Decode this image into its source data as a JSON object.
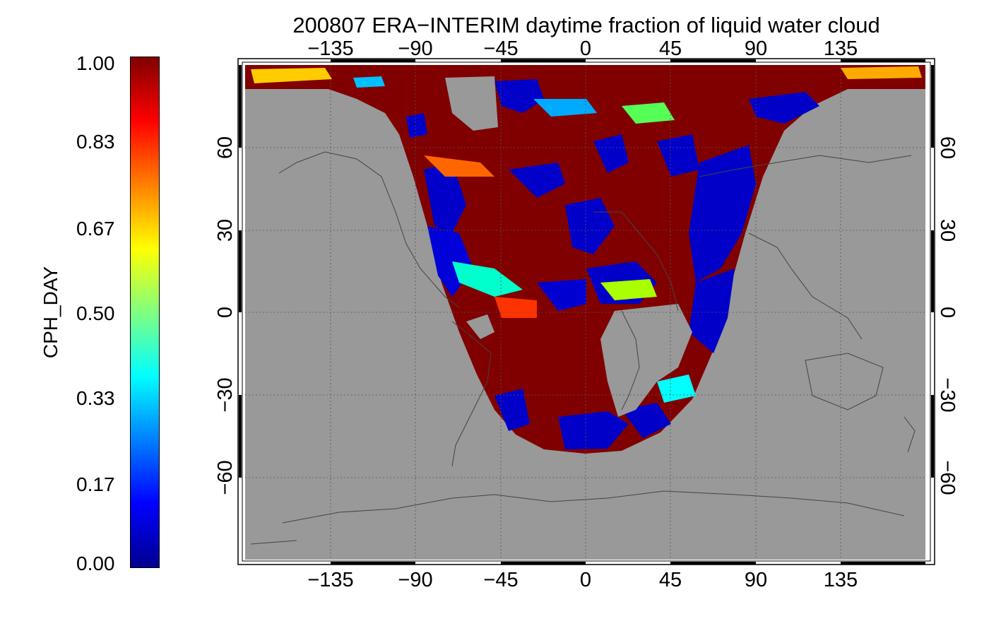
{
  "title": "200807 ERA−INTERIM daytime fraction of liquid water cloud",
  "colorbar": {
    "label": "CPH_DAY",
    "ticks": [
      "1.00",
      "0.83",
      "0.67",
      "0.50",
      "0.33",
      "0.17",
      "0.00"
    ],
    "range": [
      0,
      1
    ],
    "colors": [
      "#00008f",
      "#0000ff",
      "#00ffff",
      "#ffff00",
      "#ff0000",
      "#800000"
    ]
  },
  "map": {
    "projection": "equirectangular",
    "lon_range": [
      -180,
      180
    ],
    "lat_range": [
      -90,
      90
    ],
    "no_data_color": "#999999",
    "lon_ticks_top": [
      "−135",
      "−90",
      "−45",
      "0",
      "45",
      "90",
      "135"
    ],
    "lon_ticks_bottom": [
      "−135",
      "−90",
      "−45",
      "0",
      "45",
      "90",
      "135"
    ],
    "lat_ticks_left": [
      "60",
      "30",
      "0",
      "−30",
      "−60"
    ],
    "lat_ticks_right": [
      "60",
      "30",
      "0",
      "−30",
      "−60"
    ],
    "gridlines": true
  }
}
